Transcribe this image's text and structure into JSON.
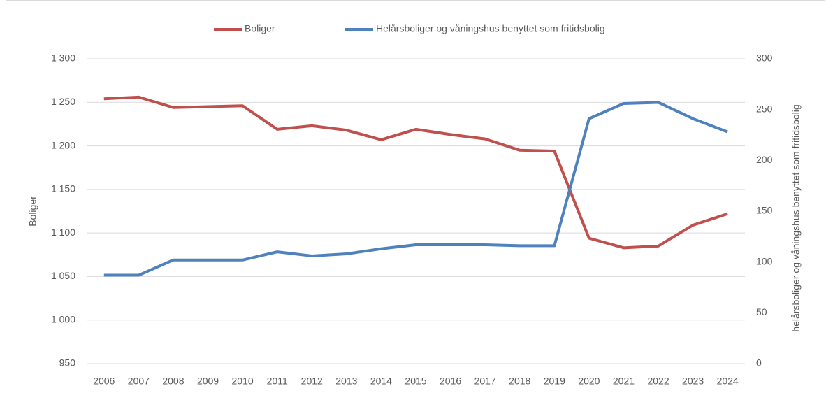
{
  "chart_data": {
    "type": "line",
    "categories": [
      "2006",
      "2007",
      "2008",
      "2009",
      "2010",
      "2011",
      "2012",
      "2013",
      "2014",
      "2015",
      "2016",
      "2017",
      "2018",
      "2019",
      "2020",
      "2021",
      "2022",
      "2023",
      "2024"
    ],
    "series": [
      {
        "name": "Boliger",
        "color": "#c0504d",
        "values": [
          1254,
          1256,
          1244,
          1245,
          1246,
          1219,
          1223,
          1218,
          1207,
          1219,
          1213,
          1208,
          1195,
          1194,
          1094,
          1083,
          1085,
          1109,
          1122
        ]
      },
      {
        "name": "Helårsboliger og våningshus benyttet som fritidsbolig",
        "color": "#4f81bd",
        "axis": "y2",
        "values": [
          87,
          87,
          102,
          102,
          102,
          110,
          106,
          108,
          113,
          117,
          117,
          117,
          116,
          116,
          241,
          256,
          257,
          241,
          228
        ]
      }
    ],
    "ylabel": "Boliger",
    "y2label": "helårsboliger og våningshus benyttet som fritidsbolig",
    "ylim": [
      950,
      1300
    ],
    "yticks": [
      {
        "value": 950,
        "label": "950"
      },
      {
        "value": 1000,
        "label": "1 000"
      },
      {
        "value": 1050,
        "label": "1 050"
      },
      {
        "value": 1100,
        "label": "1 100"
      },
      {
        "value": 1150,
        "label": "1 150"
      },
      {
        "value": 1200,
        "label": "1 200"
      },
      {
        "value": 1250,
        "label": "1 250"
      },
      {
        "value": 1300,
        "label": "1 300"
      }
    ],
    "y2lim": [
      0,
      300
    ],
    "y2ticks": [
      0,
      50,
      100,
      150,
      200,
      250,
      300
    ],
    "grid": true,
    "legend": "top"
  }
}
